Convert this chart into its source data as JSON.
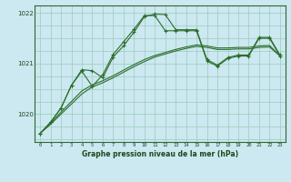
{
  "title": "Graphe pression niveau de la mer (hPa)",
  "background_color": "#cce8f0",
  "plot_bg_color": "#cce8f0",
  "grid_color": "#99ccbb",
  "line_color": "#2d6e2d",
  "xlim": [
    -0.5,
    23.5
  ],
  "ylim": [
    1019.45,
    1022.15
  ],
  "yticks": [
    1020,
    1021,
    1022
  ],
  "xticks": [
    0,
    1,
    2,
    3,
    4,
    5,
    6,
    7,
    8,
    9,
    10,
    11,
    12,
    13,
    14,
    15,
    16,
    17,
    18,
    19,
    20,
    21,
    22,
    23
  ],
  "series1": [
    1019.62,
    1019.84,
    1020.12,
    1020.57,
    1020.88,
    1020.86,
    1020.72,
    1021.13,
    1021.35,
    1021.62,
    1021.93,
    1021.98,
    1021.97,
    1021.67,
    1021.67,
    1021.67,
    1021.08,
    1020.97,
    1021.12,
    1021.17,
    1021.17,
    1021.52,
    1021.52,
    1021.17
  ],
  "series2": [
    1019.62,
    1019.84,
    1020.12,
    1020.57,
    1020.85,
    1020.55,
    1020.78,
    1021.18,
    1021.43,
    1021.68,
    1021.95,
    1021.95,
    1021.65,
    1021.65,
    1021.65,
    1021.65,
    1021.05,
    1020.95,
    1021.1,
    1021.15,
    1021.15,
    1021.5,
    1021.5,
    1021.15
  ],
  "smooth1": [
    1019.62,
    1019.8,
    1020.0,
    1020.2,
    1020.4,
    1020.54,
    1020.62,
    1020.72,
    1020.83,
    1020.94,
    1021.04,
    1021.13,
    1021.19,
    1021.25,
    1021.3,
    1021.34,
    1021.32,
    1021.28,
    1021.28,
    1021.29,
    1021.29,
    1021.32,
    1021.33,
    1021.15
  ],
  "smooth2": [
    1019.62,
    1019.82,
    1020.04,
    1020.25,
    1020.46,
    1020.58,
    1020.66,
    1020.76,
    1020.87,
    1020.98,
    1021.08,
    1021.16,
    1021.22,
    1021.28,
    1021.33,
    1021.37,
    1021.35,
    1021.31,
    1021.31,
    1021.32,
    1021.32,
    1021.35,
    1021.36,
    1021.15
  ]
}
